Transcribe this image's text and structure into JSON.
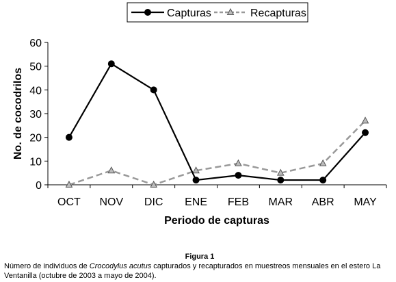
{
  "chart_data": {
    "type": "line",
    "categories": [
      "OCT",
      "NOV",
      "DIC",
      "ENE",
      "FEB",
      "MAR",
      "ABR",
      "MAY"
    ],
    "series": [
      {
        "name": "Capturas",
        "values": [
          20,
          51,
          40,
          2,
          4,
          2,
          2,
          22
        ],
        "color": "#000000",
        "style": "solid",
        "marker": "circle"
      },
      {
        "name": "Recapturas",
        "values": [
          0,
          6,
          0,
          6,
          9,
          5,
          9,
          27
        ],
        "color": "#999999",
        "style": "dashed",
        "marker": "triangle"
      }
    ],
    "xlabel": "Periodo de capturas",
    "ylabel": "No. de cocodrilos",
    "ylim": [
      0,
      60
    ],
    "yticks": [
      0,
      10,
      20,
      30,
      40,
      50,
      60
    ],
    "grid": false,
    "legend_position": "top-center"
  },
  "caption": {
    "figure_label": "Figura 1",
    "text_before": "Número de individuos de ",
    "species": "Crocodylus acutus",
    "text_after": " capturados y recapturados en  muestreos mensuales en el estero La Ventanilla (octubre de 2003 a mayo de 2004)."
  }
}
